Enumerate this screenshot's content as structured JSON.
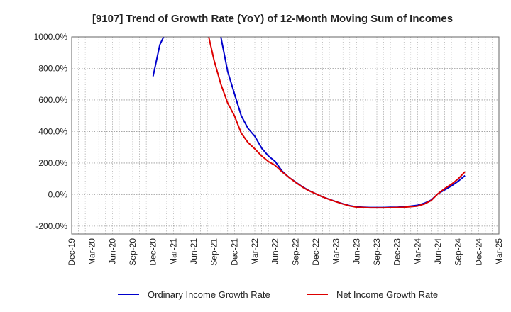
{
  "chart_data": {
    "type": "line",
    "title": "[9107]  Trend of Growth Rate (YoY) of 12-Month Moving Sum of Incomes",
    "xlabel": "",
    "ylabel": "",
    "x_ticks": [
      "Dec-19",
      "Mar-20",
      "Jun-20",
      "Sep-20",
      "Dec-20",
      "Mar-21",
      "Jun-21",
      "Sep-21",
      "Dec-21",
      "Mar-22",
      "Jun-22",
      "Sep-22",
      "Dec-22",
      "Mar-23",
      "Jun-23",
      "Sep-23",
      "Dec-23",
      "Mar-24",
      "Jun-24",
      "Sep-24",
      "Dec-24",
      "Mar-25"
    ],
    "y_ticks": [
      "1000.0%",
      "800.0%",
      "600.0%",
      "400.0%",
      "200.0%",
      "0.0%",
      "-200.0%"
    ],
    "y_tick_values": [
      1000,
      800,
      600,
      400,
      200,
      0,
      -200
    ],
    "ylim": [
      -250,
      1000
    ],
    "x_range_months": [
      0,
      63
    ],
    "grid": true,
    "legend_position": "bottom",
    "series": [
      {
        "name": "Ordinary Income Growth Rate",
        "color": "#0000cc",
        "points": [
          [
            12,
            750
          ],
          [
            13,
            950
          ],
          [
            14,
            1040
          ],
          [
            21,
            1040
          ],
          [
            22,
            1000
          ],
          [
            23,
            780
          ],
          [
            24,
            640
          ],
          [
            25,
            500
          ],
          [
            26,
            420
          ],
          [
            27,
            370
          ],
          [
            28,
            295
          ],
          [
            29,
            245
          ],
          [
            30,
            210
          ],
          [
            31,
            150
          ],
          [
            32,
            110
          ],
          [
            33,
            80
          ],
          [
            34,
            50
          ],
          [
            35,
            25
          ],
          [
            36,
            5
          ],
          [
            37,
            -15
          ],
          [
            38,
            -30
          ],
          [
            39,
            -45
          ],
          [
            40,
            -58
          ],
          [
            41,
            -70
          ],
          [
            42,
            -78
          ],
          [
            43,
            -80
          ],
          [
            44,
            -82
          ],
          [
            45,
            -82
          ],
          [
            46,
            -82
          ],
          [
            47,
            -80
          ],
          [
            48,
            -80
          ],
          [
            49,
            -77
          ],
          [
            50,
            -73
          ],
          [
            51,
            -68
          ],
          [
            52,
            -55
          ],
          [
            53,
            -35
          ],
          [
            54,
            5
          ],
          [
            55,
            30
          ],
          [
            56,
            55
          ],
          [
            57,
            85
          ],
          [
            58,
            120
          ]
        ]
      },
      {
        "name": "Net Income Growth Rate",
        "color": "#dd0000",
        "points": [
          [
            20,
            1040
          ],
          [
            21,
            850
          ],
          [
            22,
            700
          ],
          [
            23,
            580
          ],
          [
            24,
            500
          ],
          [
            25,
            390
          ],
          [
            26,
            330
          ],
          [
            27,
            290
          ],
          [
            28,
            245
          ],
          [
            29,
            210
          ],
          [
            30,
            185
          ],
          [
            31,
            145
          ],
          [
            32,
            110
          ],
          [
            33,
            78
          ],
          [
            34,
            48
          ],
          [
            35,
            24
          ],
          [
            36,
            5
          ],
          [
            37,
            -15
          ],
          [
            38,
            -31
          ],
          [
            39,
            -46
          ],
          [
            40,
            -60
          ],
          [
            41,
            -72
          ],
          [
            42,
            -80
          ],
          [
            43,
            -82
          ],
          [
            44,
            -84
          ],
          [
            45,
            -84
          ],
          [
            46,
            -84
          ],
          [
            47,
            -83
          ],
          [
            48,
            -82
          ],
          [
            49,
            -80
          ],
          [
            50,
            -77
          ],
          [
            51,
            -73
          ],
          [
            52,
            -60
          ],
          [
            53,
            -38
          ],
          [
            54,
            5
          ],
          [
            55,
            38
          ],
          [
            56,
            65
          ],
          [
            57,
            100
          ],
          [
            58,
            145
          ]
        ]
      }
    ]
  }
}
